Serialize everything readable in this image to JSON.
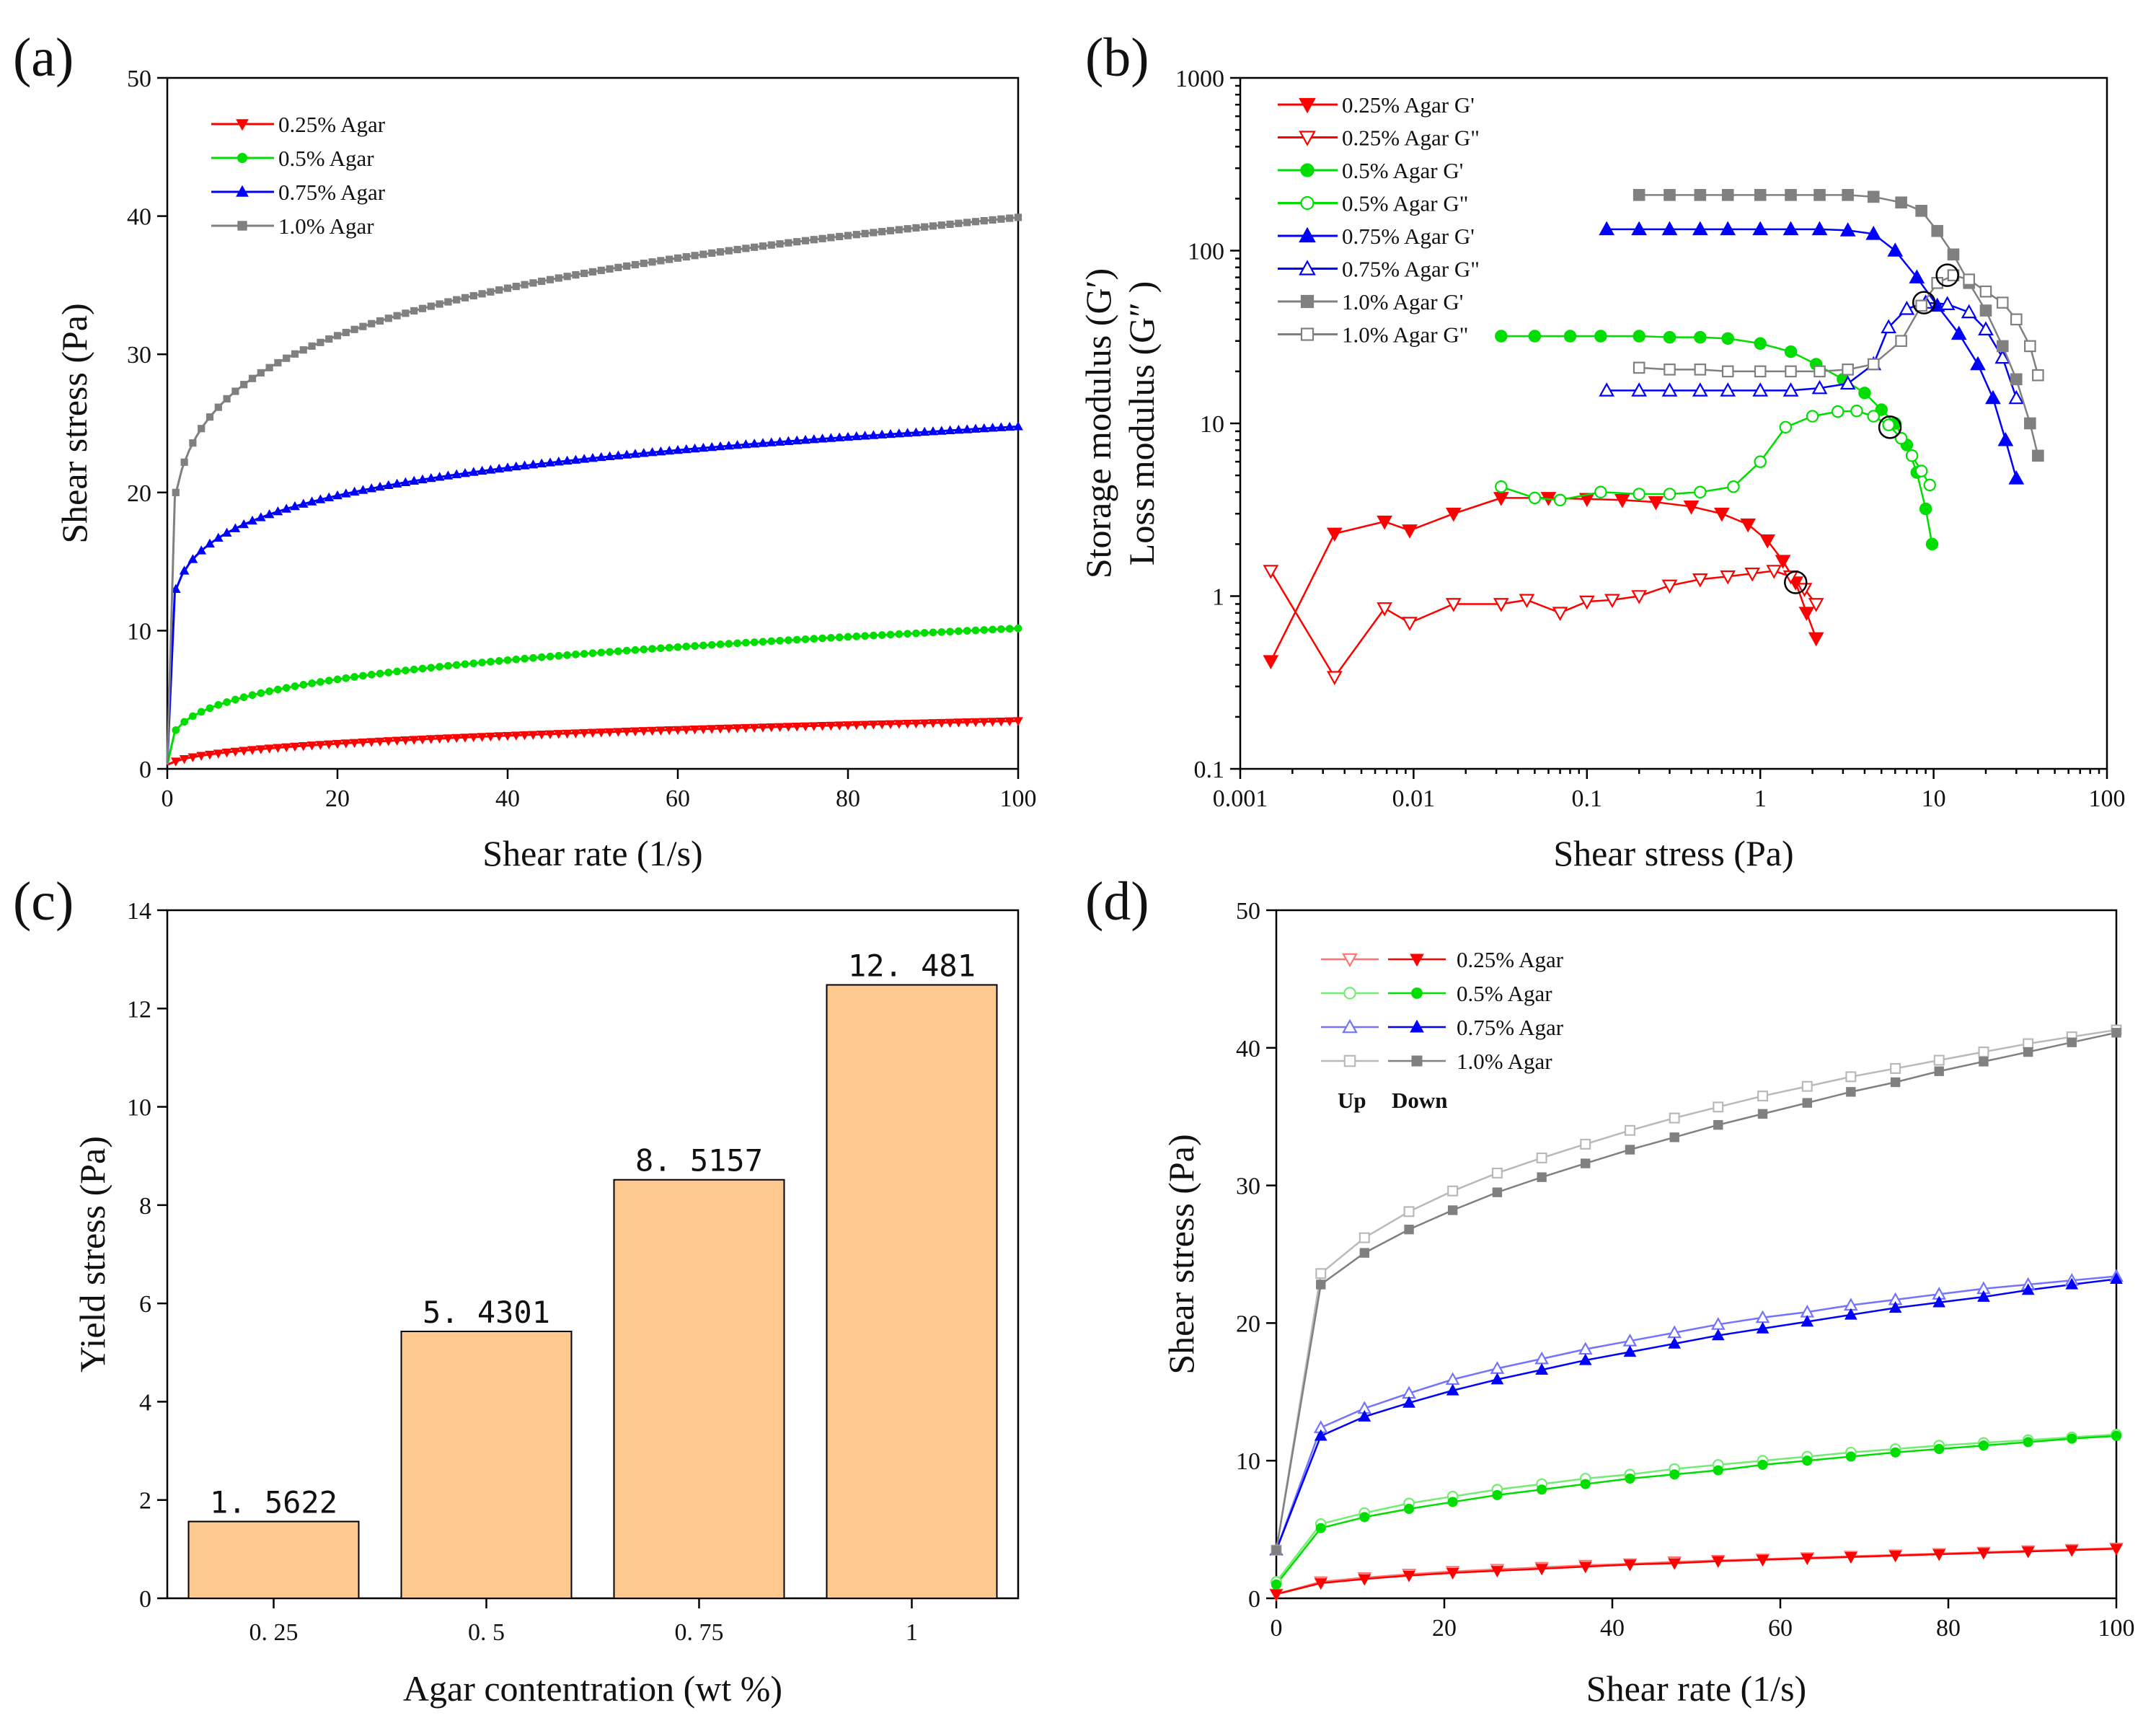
{
  "chart_data": [
    {
      "panel": "(a)",
      "type": "line",
      "xlabel": "Shear rate (1/s)",
      "ylabel": "Shear stress (Pa)",
      "xlim": [
        0,
        100
      ],
      "ylim": [
        0,
        50
      ],
      "xticks": [
        "0",
        "20",
        "40",
        "60",
        "80",
        "100"
      ],
      "yticks": [
        "0",
        "10",
        "20",
        "30",
        "40",
        "50"
      ],
      "legend_position": "top-left",
      "series": [
        {
          "name": "0.25% Agar",
          "color": "#ff0000",
          "marker": "triangle-down",
          "model": {
            "k": 0.55,
            "n": 0.4
          }
        },
        {
          "name": "0.5%   Agar",
          "color": "#00dd00",
          "marker": "circle",
          "model": {
            "k": 2.8,
            "n": 0.28
          }
        },
        {
          "name": "0.75% Agar",
          "color": "#0000ff",
          "marker": "triangle-up",
          "model": {
            "k": 13.0,
            "n": 0.14
          }
        },
        {
          "name": "1.0%   Agar",
          "color": "#808080",
          "marker": "square",
          "model": {
            "k": 20.0,
            "n": 0.15
          }
        }
      ]
    },
    {
      "panel": "(b)",
      "type": "scatter",
      "xscale": "log",
      "yscale": "log",
      "xlabel": "Shear stress (Pa)",
      "ylabel_line1": "Storage modulus (G′)",
      "ylabel_line2": "Loss modulus (G″  )",
      "xlim": [
        0.001,
        100
      ],
      "ylim": [
        0.1,
        1000
      ],
      "xticks": [
        "0.001",
        "0.01",
        "0.1",
        "1",
        "10",
        "100"
      ],
      "yticks": [
        "0.1",
        "1",
        "10",
        "100",
        "1000"
      ],
      "legend_position": "top-left",
      "series": [
        {
          "name": "0.25% Agar G'",
          "color": "#ff0000",
          "marker": "triangle-down",
          "filled": true,
          "x": [
            0.0015,
            0.0035,
            0.0068,
            0.0095,
            0.017,
            0.032,
            0.06,
            0.1,
            0.16,
            0.25,
            0.4,
            0.6,
            0.85,
            1.1,
            1.35,
            1.6,
            1.85,
            2.1
          ],
          "y": [
            0.42,
            2.3,
            2.7,
            2.4,
            3.0,
            3.7,
            3.7,
            3.65,
            3.6,
            3.5,
            3.3,
            3.0,
            2.6,
            2.1,
            1.6,
            1.2,
            0.8,
            0.57
          ]
        },
        {
          "name": "0.25% Agar G\"",
          "color": "#ff0000",
          "marker": "triangle-down",
          "filled": false,
          "x": [
            0.0015,
            0.0035,
            0.0068,
            0.0095,
            0.017,
            0.032,
            0.045,
            0.07,
            0.1,
            0.14,
            0.2,
            0.3,
            0.45,
            0.65,
            0.9,
            1.2,
            1.5,
            1.8,
            2.1
          ],
          "y": [
            1.4,
            0.34,
            0.85,
            0.7,
            0.9,
            0.9,
            0.95,
            0.8,
            0.93,
            0.95,
            1.0,
            1.15,
            1.25,
            1.3,
            1.35,
            1.4,
            1.3,
            1.1,
            0.9
          ]
        },
        {
          "name": "0.5%   Agar G'",
          "color": "#00dd00",
          "marker": "circle",
          "filled": true,
          "x": [
            0.032,
            0.05,
            0.08,
            0.12,
            0.2,
            0.3,
            0.45,
            0.65,
            1.0,
            1.5,
            2.1,
            3.0,
            4.0,
            5.0,
            6.0,
            7.0,
            8.0,
            9.0,
            9.8
          ],
          "y": [
            32,
            32,
            32,
            32,
            32,
            31.5,
            31.5,
            31,
            29,
            26,
            22,
            18,
            15,
            12,
            10,
            7.5,
            5.2,
            3.2,
            2.0
          ]
        },
        {
          "name": "0.5%   Agar G\"",
          "color": "#00dd00",
          "marker": "circle",
          "filled": false,
          "x": [
            0.032,
            0.05,
            0.07,
            0.12,
            0.2,
            0.3,
            0.45,
            0.7,
            1.0,
            1.4,
            2.0,
            2.8,
            3.6,
            4.5,
            5.5,
            6.5,
            7.5,
            8.5,
            9.5
          ],
          "y": [
            4.3,
            3.7,
            3.6,
            4.0,
            3.9,
            3.9,
            4.0,
            4.3,
            6.0,
            9.5,
            11.0,
            11.7,
            11.8,
            11.0,
            9.8,
            8.2,
            6.5,
            5.3,
            4.4
          ]
        },
        {
          "name": "0.75% Agar G'",
          "color": "#0000ff",
          "marker": "triangle-up",
          "filled": true,
          "x": [
            0.13,
            0.2,
            0.3,
            0.45,
            0.65,
            1.0,
            1.5,
            2.2,
            3.2,
            4.5,
            6.0,
            8.0,
            10.5,
            14,
            18,
            22,
            26,
            30
          ],
          "y": [
            133,
            133,
            133,
            133,
            133,
            133,
            133,
            133,
            131,
            125,
            100,
            70,
            48,
            33,
            22,
            14,
            8,
            4.8
          ]
        },
        {
          "name": "0.75% Agar G\"",
          "color": "#0000ff",
          "marker": "triangle-up",
          "filled": false,
          "x": [
            0.13,
            0.2,
            0.3,
            0.45,
            0.65,
            1.0,
            1.5,
            2.2,
            3.2,
            4.5,
            5.5,
            7.0,
            9.0,
            12,
            16,
            20,
            25,
            30
          ],
          "y": [
            15.5,
            15.5,
            15.5,
            15.5,
            15.5,
            15.5,
            15.5,
            16,
            17,
            22,
            36,
            46,
            50,
            49,
            44,
            35,
            24,
            14
          ]
        },
        {
          "name": "1.0%   Agar G'",
          "color": "#808080",
          "marker": "square",
          "filled": true,
          "x": [
            0.2,
            0.3,
            0.45,
            0.65,
            1.0,
            1.5,
            2.2,
            3.2,
            4.5,
            6.5,
            8.5,
            10.5,
            13,
            16,
            20,
            25,
            30,
            36,
            40
          ],
          "y": [
            210,
            210,
            210,
            210,
            210,
            210,
            210,
            210,
            205,
            190,
            170,
            130,
            95,
            65,
            45,
            28,
            18,
            10,
            6.5
          ]
        },
        {
          "name": "1.0%   Agar G\"",
          "color": "#808080",
          "marker": "square",
          "filled": false,
          "x": [
            0.2,
            0.3,
            0.45,
            0.65,
            1.0,
            1.5,
            2.2,
            3.2,
            4.5,
            6.5,
            8.5,
            10.5,
            13,
            16,
            20,
            25,
            30,
            36,
            40
          ],
          "y": [
            21,
            20.5,
            20.5,
            20,
            20,
            20,
            20,
            20.5,
            22,
            30,
            48,
            65,
            72,
            68,
            58,
            50,
            40,
            28,
            19
          ]
        }
      ],
      "crossover_points": {
        "x": [
          1.6,
          5.6,
          8.8,
          12.0
        ],
        "y": [
          1.2,
          9.5,
          50,
          72
        ]
      }
    },
    {
      "panel": "(c)",
      "type": "bar",
      "xlabel": "Agar contentration (wt %)",
      "ylabel": "Yield stress (Pa)",
      "categories": [
        "0. 25",
        "0. 5",
        "0. 75",
        "1"
      ],
      "values": [
        1.5622,
        5.4301,
        8.5157,
        12.481
      ],
      "value_labels": [
        "1. 5622",
        "5. 4301",
        "8. 5157",
        "12. 481"
      ],
      "ylim": [
        0,
        14
      ],
      "yticks": [
        "0",
        "2",
        "4",
        "6",
        "8",
        "10",
        "12",
        "14"
      ],
      "bar_color": "#fdc98f"
    },
    {
      "panel": "(d)",
      "type": "line",
      "xlabel": "Shear rate (1/s)",
      "ylabel": "Shear stress (Pa)",
      "xlim": [
        0,
        100
      ],
      "ylim": [
        0,
        50
      ],
      "xticks": [
        "0",
        "20",
        "40",
        "60",
        "80",
        "100"
      ],
      "yticks": [
        "0",
        "10",
        "20",
        "30",
        "40",
        "50"
      ],
      "legend_position": "top-left",
      "legend_note_up": "Up",
      "legend_note_down": "Down",
      "x": [
        0,
        5.3,
        10.5,
        15.8,
        21,
        26.3,
        31.6,
        36.8,
        42.1,
        47.4,
        52.6,
        57.9,
        63.2,
        68.4,
        73.7,
        78.9,
        84.2,
        89.5,
        94.7,
        100
      ],
      "series": [
        {
          "name": "0.25% Agar",
          "color": "#ff0000",
          "marker_up": "triangle-down-open",
          "marker_down": "triangle-down",
          "up": [
            0.3,
            1.2,
            1.5,
            1.75,
            1.95,
            2.1,
            2.25,
            2.4,
            2.5,
            2.65,
            2.75,
            2.85,
            2.95,
            3.05,
            3.15,
            3.25,
            3.35,
            3.45,
            3.55,
            3.65
          ],
          "down": [
            0.3,
            1.1,
            1.4,
            1.65,
            1.85,
            2.0,
            2.15,
            2.3,
            2.45,
            2.55,
            2.7,
            2.8,
            2.9,
            3.0,
            3.1,
            3.2,
            3.3,
            3.4,
            3.5,
            3.6
          ]
        },
        {
          "name": "0.5%   Agar",
          "color": "#00dd00",
          "marker_up": "circle-open",
          "marker_down": "circle",
          "up": [
            1.2,
            5.4,
            6.2,
            6.9,
            7.4,
            7.9,
            8.3,
            8.7,
            9.0,
            9.4,
            9.7,
            10.0,
            10.3,
            10.6,
            10.85,
            11.1,
            11.3,
            11.5,
            11.7,
            11.9
          ],
          "down": [
            1.0,
            5.1,
            5.9,
            6.5,
            7.0,
            7.5,
            7.9,
            8.3,
            8.7,
            9.0,
            9.3,
            9.7,
            10.0,
            10.3,
            10.6,
            10.85,
            11.1,
            11.35,
            11.6,
            11.8
          ]
        },
        {
          "name": "0.75% Agar",
          "color": "#0000ff",
          "marker_up": "triangle-up-open",
          "marker_down": "triangle-up",
          "up": [
            3.5,
            12.4,
            13.8,
            14.9,
            15.9,
            16.7,
            17.4,
            18.1,
            18.7,
            19.3,
            19.9,
            20.4,
            20.8,
            21.3,
            21.7,
            22.1,
            22.5,
            22.8,
            23.1,
            23.4
          ],
          "down": [
            3.5,
            11.8,
            13.2,
            14.2,
            15.1,
            15.9,
            16.6,
            17.3,
            17.9,
            18.5,
            19.1,
            19.6,
            20.1,
            20.6,
            21.1,
            21.5,
            21.9,
            22.4,
            22.8,
            23.2
          ]
        },
        {
          "name": "1.0%   Agar",
          "color": "#808080",
          "marker_up": "square-open",
          "marker_down": "square",
          "up": [
            3.5,
            23.6,
            26.2,
            28.1,
            29.6,
            30.9,
            32.0,
            33.0,
            34.0,
            34.9,
            35.7,
            36.5,
            37.2,
            37.9,
            38.5,
            39.1,
            39.7,
            40.3,
            40.8,
            41.3
          ],
          "down": [
            3.5,
            22.8,
            25.1,
            26.8,
            28.2,
            29.5,
            30.6,
            31.6,
            32.6,
            33.5,
            34.4,
            35.2,
            36.0,
            36.8,
            37.5,
            38.3,
            39.0,
            39.7,
            40.4,
            41.1
          ]
        }
      ]
    }
  ],
  "labels": {
    "a": "(a)",
    "b": "(b)",
    "c": "(c)",
    "d": "(d)"
  }
}
